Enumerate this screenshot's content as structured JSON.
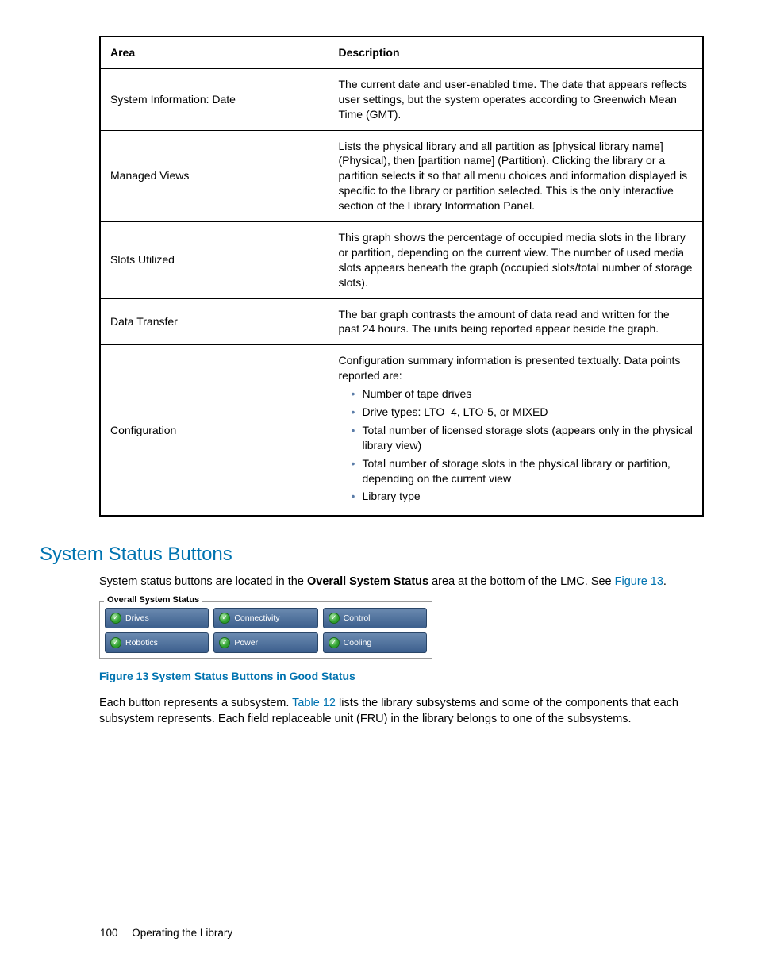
{
  "table": {
    "headers": [
      "Area",
      "Description"
    ],
    "rows": [
      {
        "area": "System Information: Date",
        "desc": "The current date and user-enabled time. The date that appears reflects user settings, but the system operates according to Greenwich Mean Time (GMT)."
      },
      {
        "area": "Managed Views",
        "desc": "Lists the physical library and all partition as [physical library name] (Physical), then [partition name] (Partition). Clicking the library or a partition selects it so that all menu choices and information displayed is specific to the library or partition selected. This is the only interactive section of the Library Information Panel."
      },
      {
        "area": "Slots Utilized",
        "desc": "This graph shows the percentage of occupied media slots in the library or partition, depending on the current view. The number of used media slots appears beneath the graph (occupied slots/total number of storage slots)."
      },
      {
        "area": "Data Transfer",
        "desc": "The bar graph contrasts the amount of data read and written for the past 24 hours. The units being reported appear beside the graph."
      }
    ],
    "config": {
      "area": "Configuration",
      "intro": "Configuration summary information is presented textually. Data points reported are:",
      "items": [
        "Number of tape drives",
        "Drive types: LTO–4, LTO-5, or MIXED",
        "Total number of licensed storage slots (appears only in the physical library view)",
        "Total number of storage slots in the physical library or partition, depending on the current view",
        "Library type"
      ]
    }
  },
  "section": {
    "heading": "System Status Buttons",
    "para1_pre": "System status buttons are located in the ",
    "para1_bold": "Overall System Status",
    "para1_post": " area at the bottom of the LMC. See ",
    "para1_link": "Figure 13",
    "para1_end": "."
  },
  "status_panel": {
    "label": "Overall System Status",
    "buttons": [
      [
        "Drives",
        "Connectivity",
        "Control"
      ],
      [
        "Robotics",
        "Power",
        "Cooling"
      ]
    ]
  },
  "figure_caption": "Figure 13 System Status Buttons in Good Status",
  "para2": {
    "pre": "Each button represents a subsystem. ",
    "link": "Table 12",
    "post": " lists the library subsystems and some of the components that each subsystem represents. Each field replaceable unit (FRU) in the library belongs to one of the subsystems."
  },
  "footer": {
    "page": "100",
    "title": "Operating the Library"
  },
  "colors": {
    "link": "#0073b0",
    "bullet": "#5a7ca8",
    "button_grad_top": "#6b8ab0",
    "button_grad_bottom": "#3c5f8d",
    "icon_green": "#2ea02e"
  }
}
